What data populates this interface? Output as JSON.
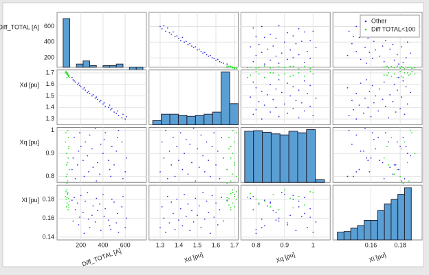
{
  "chart_data": {
    "type": "scatter-matrix",
    "grid": true,
    "legend": "upper right",
    "hist_color": "#5a9fd4",
    "variables": [
      {
        "label": "Diff_TOTAL [A]",
        "xlim": [
          -15,
          790
        ],
        "ylim": [
          80,
          780
        ],
        "xticks": [
          200,
          400,
          600
        ],
        "yticks": [
          200,
          400,
          600
        ]
      },
      {
        "label": "Xd [pu]",
        "xlim": [
          1.24,
          1.72
        ],
        "ylim": [
          1.25,
          1.725
        ],
        "xticks": [
          1.3,
          1.4,
          1.5,
          1.6,
          1.7
        ],
        "yticks": [
          1.3,
          1.4,
          1.5,
          1.6,
          1.7
        ]
      },
      {
        "label": "Xq [pu]",
        "xlim": [
          0.747,
          1.06
        ],
        "ylim": [
          0.774,
          1.013
        ],
        "xticks": [
          0.8,
          0.9,
          1
        ],
        "yticks": [
          0.8,
          0.9,
          1
        ]
      },
      {
        "label": "Xl [pu]",
        "xlim": [
          0.134,
          0.195
        ],
        "ylim": [
          0.137,
          0.195
        ],
        "xticks": [
          0.16,
          0.18
        ],
        "yticks": [
          0.14,
          0.16,
          0.18
        ]
      }
    ],
    "histograms": [
      {
        "bins": [
          40,
          100,
          160,
          220,
          280,
          340,
          400,
          460,
          520,
          580,
          640,
          700,
          760
        ],
        "counts": [
          700,
          80,
          120,
          160,
          100,
          80,
          100,
          100,
          120,
          80,
          30,
          10
        ],
        "ylim": [
          80,
          780
        ]
      },
      {
        "bins": [
          1.26,
          1.306,
          1.352,
          1.398,
          1.444,
          1.49,
          1.536,
          1.582,
          1.628,
          1.674,
          1.72
        ],
        "counts": [
          8,
          20,
          20,
          18,
          16,
          18,
          20,
          24,
          100,
          40
        ],
        "ylim": [
          0,
          104
        ]
      },
      {
        "bins": [
          0.76,
          0.791,
          0.822,
          0.853,
          0.884,
          0.915,
          0.946,
          0.977,
          1.008,
          1.04
        ],
        "counts": [
          97,
          98,
          95,
          92,
          90,
          97,
          94,
          100,
          5
        ],
        "ylim": [
          0,
          104
        ]
      },
      {
        "bins": [
          0.137,
          0.1416,
          0.1462,
          0.1508,
          0.1554,
          0.16,
          0.1646,
          0.1692,
          0.1738,
          0.1784,
          0.183,
          0.1876
        ],
        "counts": [
          12,
          13,
          18,
          22,
          30,
          30,
          45,
          55,
          62,
          70,
          80
        ],
        "ylim": [
          0,
          84
        ]
      }
    ],
    "series": [
      {
        "name": "Other",
        "color": "#3333dd",
        "values": [
          [
            600,
            1.3,
            0.82,
            0.15
          ],
          [
            570,
            1.31,
            0.95,
            0.172
          ],
          [
            610,
            1.32,
            0.88,
            0.16
          ],
          [
            540,
            1.33,
            1.0,
            0.145
          ],
          [
            580,
            1.34,
            0.79,
            0.183
          ],
          [
            520,
            1.35,
            0.91,
            0.155
          ],
          [
            500,
            1.36,
            0.85,
            0.177
          ],
          [
            530,
            1.37,
            0.97,
            0.165
          ],
          [
            470,
            1.38,
            0.8,
            0.148
          ],
          [
            480,
            1.39,
            0.93,
            0.18
          ],
          [
            450,
            1.4,
            0.87,
            0.158
          ],
          [
            420,
            1.41,
            0.99,
            0.17
          ],
          [
            460,
            1.42,
            0.83,
            0.152
          ],
          [
            400,
            1.43,
            0.9,
            0.185
          ],
          [
            410,
            1.44,
            0.96,
            0.162
          ],
          [
            370,
            1.45,
            0.81,
            0.175
          ],
          [
            380,
            1.46,
            0.94,
            0.147
          ],
          [
            350,
            1.47,
            0.86,
            0.168
          ],
          [
            330,
            1.48,
            1.01,
            0.156
          ],
          [
            340,
            1.49,
            0.78,
            0.181
          ],
          [
            300,
            1.5,
            0.92,
            0.163
          ],
          [
            310,
            1.51,
            0.84,
            0.173
          ],
          [
            280,
            1.52,
            0.98,
            0.15
          ],
          [
            260,
            1.53,
            0.89,
            0.187
          ],
          [
            270,
            1.54,
            0.82,
            0.159
          ],
          [
            240,
            1.55,
            0.95,
            0.178
          ],
          [
            220,
            1.56,
            0.87,
            0.166
          ],
          [
            230,
            1.57,
            0.8,
            0.144
          ],
          [
            200,
            1.58,
            0.93,
            0.184
          ],
          [
            190,
            1.59,
            0.99,
            0.161
          ],
          [
            170,
            1.6,
            0.85,
            0.176
          ],
          [
            180,
            1.61,
            0.91,
            0.153
          ],
          [
            150,
            1.62,
            0.79,
            0.169
          ],
          [
            140,
            1.63,
            0.97,
            0.182
          ],
          [
            130,
            1.64,
            0.88,
            0.157
          ],
          [
            120,
            1.66,
            0.83,
            0.179
          ]
        ]
      },
      {
        "name": "Diff TOTAL<100",
        "color": "#22dd22",
        "values": [
          [
            80,
            1.68,
            0.78,
            0.186
          ],
          [
            70,
            1.7,
            0.85,
            0.172
          ],
          [
            90,
            1.67,
            0.92,
            0.181
          ],
          [
            65,
            1.71,
            0.99,
            0.188
          ],
          [
            75,
            1.69,
            0.81,
            0.176
          ],
          [
            85,
            1.68,
            0.88,
            0.169
          ],
          [
            60,
            1.7,
            0.95,
            0.183
          ],
          [
            95,
            1.66,
            0.83,
            0.178
          ],
          [
            72,
            1.69,
            0.9,
            0.19
          ],
          [
            88,
            1.67,
            0.97,
            0.174
          ],
          [
            68,
            1.71,
            0.8,
            0.18
          ],
          [
            78,
            1.7,
            0.86,
            0.185
          ],
          [
            92,
            1.68,
            0.93,
            0.171
          ],
          [
            82,
            1.69,
            1.0,
            0.187
          ],
          [
            74,
            1.66,
            0.77,
            0.182
          ]
        ]
      }
    ]
  }
}
